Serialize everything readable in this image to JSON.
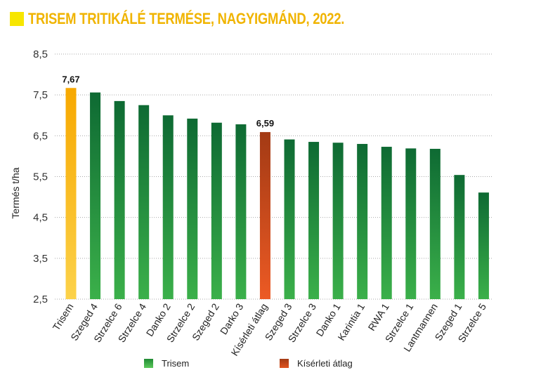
{
  "title": "TRISEM TRITIKÁLÉ TERMÉSE, NAGYIGMÁND, 2022.",
  "chart_data": {
    "type": "bar",
    "title": "TRISEM TRITIKÁLÉ TERMÉSE, NAGYIGMÁND, 2022.",
    "ylabel": "Termés t/ha",
    "xlabel": "",
    "ylim": [
      2.5,
      8.5
    ],
    "yticks": [
      "2,5",
      "3,5",
      "4,5",
      "5,5",
      "6,5",
      "7,5",
      "8,5"
    ],
    "grid": true,
    "legend_position": "bottom",
    "categories": [
      "Trisem",
      "Szeged 4",
      "Strzelce 6",
      "Strzelce 4",
      "Danko 2",
      "Strzelce 2",
      "Szeged 2",
      "Darko 3",
      "Kísérleti átlag",
      "Szeged 3",
      "Strzelce 3",
      "Danko 1",
      "Karintia 1",
      "RWA 1",
      "Strzelce 1",
      "Lantmannen",
      "Szeged 1",
      "Strzelce 5"
    ],
    "values": [
      7.67,
      7.56,
      7.35,
      7.25,
      7.0,
      6.92,
      6.82,
      6.78,
      6.59,
      6.41,
      6.35,
      6.33,
      6.3,
      6.23,
      6.19,
      6.18,
      5.54,
      5.11
    ],
    "bar_groups": [
      "highlight",
      "trisem",
      "trisem",
      "trisem",
      "trisem",
      "trisem",
      "trisem",
      "trisem",
      "average",
      "trisem",
      "trisem",
      "trisem",
      "trisem",
      "trisem",
      "trisem",
      "trisem",
      "trisem",
      "trisem"
    ],
    "data_labels": [
      {
        "index": 0,
        "text": "7,67"
      },
      {
        "index": 8,
        "text": "6,59"
      }
    ],
    "legend": [
      {
        "label": "Trisem",
        "color": "#2a9a3a"
      },
      {
        "label": "Kísérleti átlag",
        "color": "#c8441c"
      }
    ],
    "colors": {
      "trisem_top": "#0e6a33",
      "trisem_bottom": "#3bb04a",
      "highlight_top": "#f7a800",
      "highlight_bottom": "#fcd24a",
      "average_top": "#a33a14",
      "average_bottom": "#ec5a24",
      "title": "#f0b400",
      "title_square": "#f7e600"
    }
  }
}
